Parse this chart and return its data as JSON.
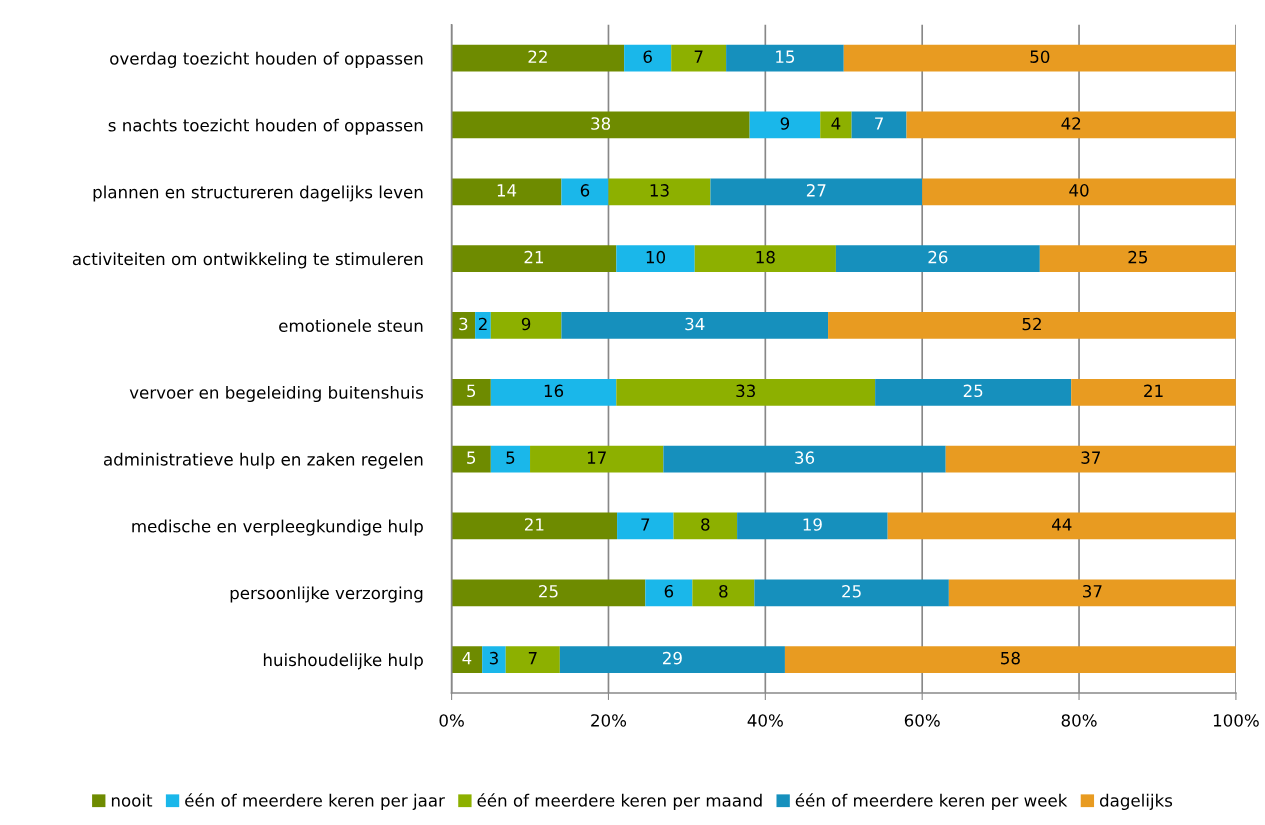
{
  "chart_data": {
    "type": "bar",
    "orientation": "horizontal",
    "stacked": true,
    "categories": [
      "overdag toezicht houden of oppassen",
      "s nachts toezicht houden of oppassen",
      "plannen en structureren dagelijks leven",
      "activiteiten om ontwikkeling te stimuleren",
      "emotionele steun",
      "vervoer en begeleiding buitenshuis",
      "administratieve hulp en zaken regelen",
      "medische en verpleegkundige hulp",
      "persoonlijke verzorging",
      "huishoudelijke hulp"
    ],
    "series": [
      {
        "name": "nooit",
        "color": "#6e8b00",
        "values": [
          22,
          38,
          14,
          21,
          3,
          5,
          5,
          21.1,
          24.7,
          3.9
        ],
        "value_labels": [
          "22",
          "38",
          "14",
          "21",
          "3",
          "5",
          "5",
          "21",
          "25",
          "4"
        ]
      },
      {
        "name": "één of meerdere keren per jaar",
        "color": "#1ab7ea",
        "values": [
          6,
          9,
          6,
          10,
          2,
          16,
          5,
          7.2,
          6.0,
          3.0
        ],
        "value_labels": [
          "6",
          "9",
          "6",
          "10",
          "2",
          "16",
          "5",
          "7",
          "6",
          "3"
        ]
      },
      {
        "name": "één of meerdere keren per maand",
        "color": "#8db000",
        "values": [
          7,
          4,
          13,
          18,
          9,
          33,
          17,
          8.1,
          7.9,
          6.9
        ],
        "value_labels": [
          "7",
          "4",
          "13",
          "18",
          "9",
          "33",
          "17",
          "8",
          "8",
          "7"
        ]
      },
      {
        "name": "één of meerdere keren per week",
        "color": "#1690bd",
        "values": [
          15,
          7,
          27,
          26,
          34,
          25,
          36,
          19.2,
          24.8,
          28.7
        ],
        "value_labels": [
          "15",
          "7",
          "27",
          "26",
          "34",
          "25",
          "36",
          "19",
          "25",
          "29"
        ]
      },
      {
        "name": "dagelijks",
        "color": "#e89b21",
        "values": [
          50,
          42,
          40,
          25,
          52,
          21,
          37,
          44.4,
          36.6,
          57.5
        ],
        "value_labels": [
          "50",
          "42",
          "40",
          "25",
          "52",
          "21",
          "37",
          "44",
          "37",
          "58"
        ]
      }
    ],
    "xlim": [
      0,
      100
    ],
    "xticks": [
      {
        "value": 0,
        "label": "0%"
      },
      {
        "value": 20,
        "label": "20%"
      },
      {
        "value": 40,
        "label": "40%"
      },
      {
        "value": 60,
        "label": "60%"
      },
      {
        "value": 80,
        "label": "80%"
      },
      {
        "value": 100,
        "label": "100%"
      }
    ],
    "grid": "x",
    "legend": "bottom"
  }
}
